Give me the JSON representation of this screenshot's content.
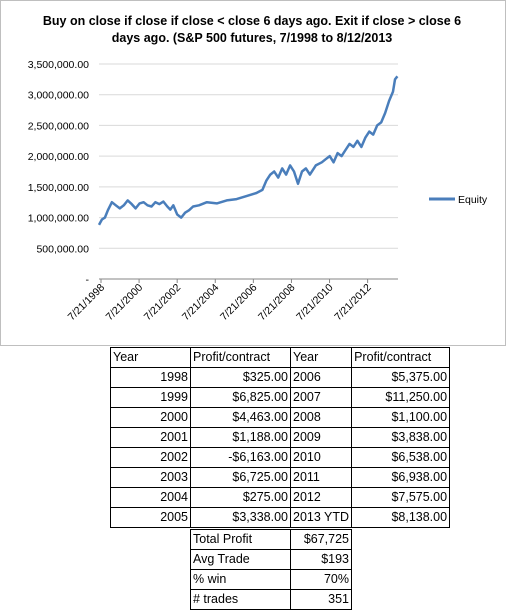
{
  "chart_data": {
    "type": "line",
    "title_lines": [
      "Buy on close if close if close < close 6 days ago. Exit if close > close 6",
      "days ago.   (S&P 500 futures, 7/1998 to 8/12/2013"
    ],
    "y_ticks": [
      "3,500,000.00",
      "3,000,000.00",
      "2,500,000.00",
      "2,000,000.00",
      "1,500,000.00",
      "1,000,000.00",
      "500,000.00",
      "-"
    ],
    "ylim": [
      0,
      3500000
    ],
    "x_ticks": [
      "7/21/1998",
      "7/21/2000",
      "7/21/2002",
      "7/21/2004",
      "7/21/2006",
      "7/21/2008",
      "7/21/2010",
      "7/21/2012"
    ],
    "xlim": [
      1998.55,
      2013.65
    ],
    "grid": true,
    "legend_position": "right",
    "series": [
      {
        "name": "Equity",
        "color": "#4a7ebb",
        "x": [
          1998.55,
          1998.7,
          1998.85,
          1999.0,
          1999.2,
          1999.4,
          1999.6,
          1999.8,
          2000.0,
          2000.2,
          2000.4,
          2000.6,
          2000.8,
          2001.0,
          2001.2,
          2001.4,
          2001.6,
          2001.8,
          2002.0,
          2002.15,
          2002.3,
          2002.5,
          2002.7,
          2002.9,
          2003.1,
          2003.3,
          2003.6,
          2004.0,
          2004.5,
          2005.0,
          2005.5,
          2006.0,
          2006.5,
          2006.8,
          2007.0,
          2007.2,
          2007.4,
          2007.6,
          2007.8,
          2008.0,
          2008.2,
          2008.4,
          2008.6,
          2008.8,
          2009.0,
          2009.2,
          2009.5,
          2009.8,
          2010.0,
          2010.2,
          2010.4,
          2010.6,
          2010.8,
          2011.0,
          2011.2,
          2011.4,
          2011.6,
          2011.8,
          2012.0,
          2012.2,
          2012.4,
          2012.6,
          2012.8,
          2013.0,
          2013.2,
          2013.4,
          2013.5,
          2013.62
        ],
        "values": [
          880000,
          970000,
          1000000,
          1120000,
          1250000,
          1200000,
          1150000,
          1200000,
          1280000,
          1220000,
          1150000,
          1230000,
          1250000,
          1200000,
          1180000,
          1250000,
          1220000,
          1260000,
          1180000,
          1130000,
          1200000,
          1050000,
          1000000,
          1080000,
          1120000,
          1180000,
          1200000,
          1250000,
          1230000,
          1280000,
          1300000,
          1350000,
          1400000,
          1450000,
          1600000,
          1700000,
          1750000,
          1650000,
          1800000,
          1700000,
          1850000,
          1750000,
          1550000,
          1750000,
          1800000,
          1700000,
          1850000,
          1900000,
          1950000,
          2000000,
          1900000,
          2050000,
          2000000,
          2100000,
          2200000,
          2150000,
          2250000,
          2150000,
          2300000,
          2400000,
          2350000,
          2500000,
          2550000,
          2700000,
          2900000,
          3050000,
          3250000,
          3300000
        ]
      }
    ]
  },
  "table": {
    "header": [
      "Year",
      "Profit/contract",
      "Year",
      "Profit/contract"
    ],
    "rows": [
      [
        "1998",
        "$325.00",
        "2006",
        "$5,375.00"
      ],
      [
        "1999",
        "$6,825.00",
        "2007",
        "$11,250.00"
      ],
      [
        "2000",
        "$4,463.00",
        "2008",
        "$1,100.00"
      ],
      [
        "2001",
        "$1,188.00",
        "2009",
        "$3,838.00"
      ],
      [
        "2002",
        "-$6,163.00",
        "2010",
        "$6,538.00"
      ],
      [
        "2003",
        "$6,725.00",
        "2011",
        "$6,938.00"
      ],
      [
        "2004",
        "$275.00",
        "2012",
        "$7,575.00"
      ],
      [
        "2005",
        "$3,338.00",
        "2013 YTD",
        "$8,138.00"
      ]
    ]
  },
  "summary": [
    {
      "label": "Total Profit",
      "value": "$67,725"
    },
    {
      "label": "Avg Trade",
      "value": "$193"
    },
    {
      "label": "% win",
      "value": "70%"
    },
    {
      "label": "# trades",
      "value": "351"
    }
  ]
}
